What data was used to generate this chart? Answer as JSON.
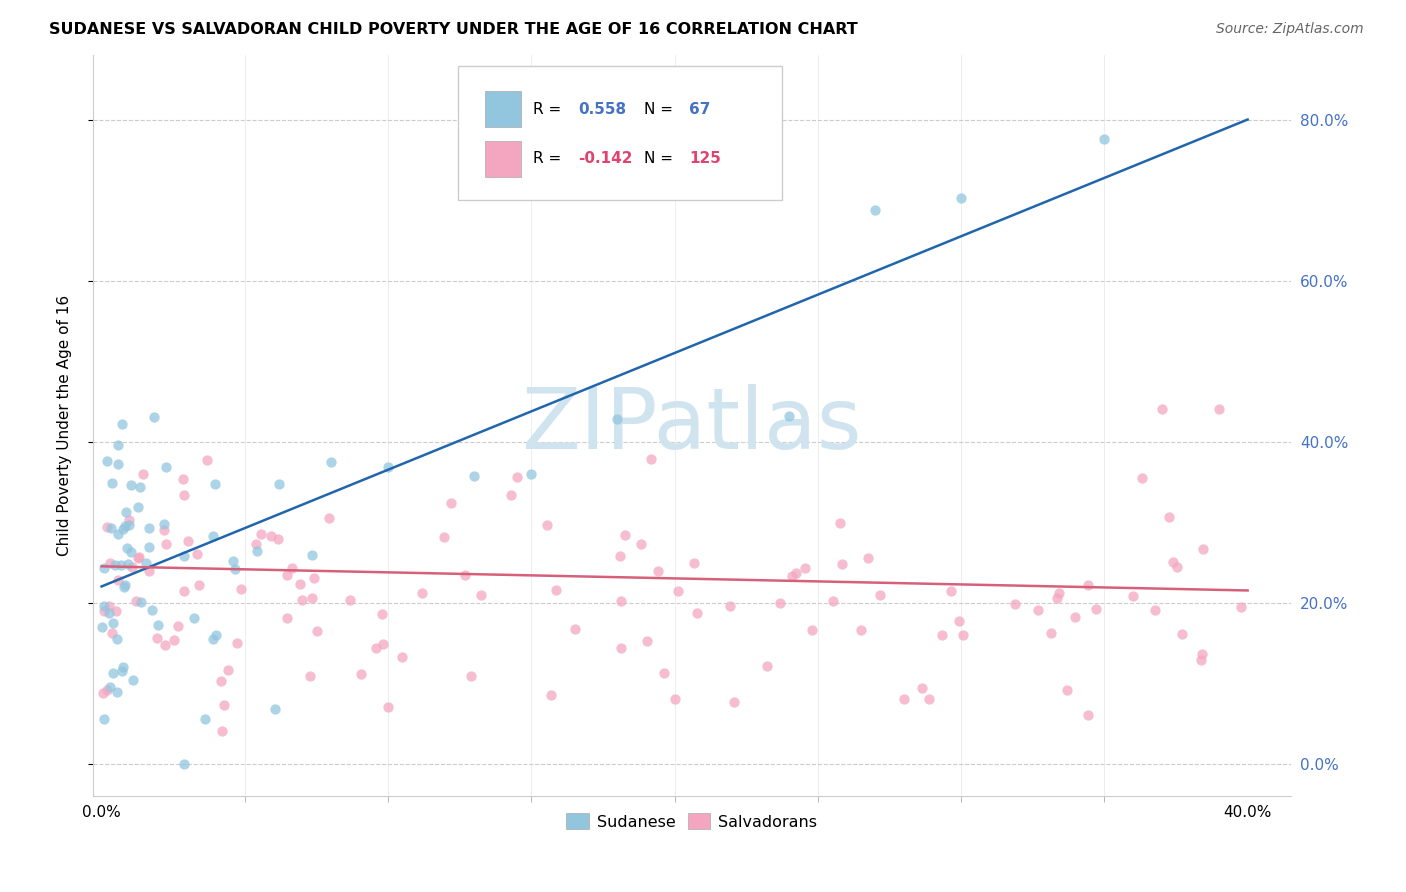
{
  "title": "SUDANESE VS SALVADORAN CHILD POVERTY UNDER THE AGE OF 16 CORRELATION CHART",
  "source": "Source: ZipAtlas.com",
  "ylabel": "Child Poverty Under the Age of 16",
  "blue_color": "#92c5de",
  "pink_color": "#f4a6c0",
  "blue_line_color": "#2166ac",
  "pink_line_color": "#d6607a",
  "blue_legend_color": "#4472C4",
  "pink_legend_color": "#e0436e",
  "watermark_color": "#d0e4f0",
  "r_blue": "0.558",
  "r_pink": "-0.142",
  "n_blue": "67",
  "n_pink": "125",
  "legend_labels": [
    "Sudanese",
    "Salvadorans"
  ],
  "ytick_vals": [
    0.0,
    0.2,
    0.4,
    0.6,
    0.8
  ],
  "ytick_labels": [
    "0.0%",
    "20.0%",
    "40.0%",
    "60.0%",
    "80.0%"
  ],
  "xtick_show": [
    "0.0%",
    "40.0%"
  ],
  "xtick_vals_show": [
    0.0,
    0.4
  ],
  "xtick_minor": [
    0.05,
    0.1,
    0.15,
    0.2,
    0.25,
    0.3,
    0.35
  ]
}
